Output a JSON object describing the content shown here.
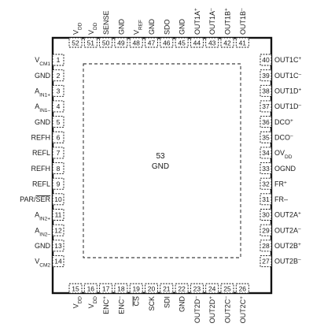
{
  "package": {
    "center_pin": {
      "number": "53",
      "name": "GND"
    }
  },
  "pins": {
    "left": [
      {
        "n": "1",
        "base": "V",
        "sub": "CM1",
        "sup": ""
      },
      {
        "n": "2",
        "base": "GND",
        "sub": "",
        "sup": ""
      },
      {
        "n": "3",
        "base": "A",
        "sub": "IN1+",
        "sup": ""
      },
      {
        "n": "4",
        "base": "A",
        "sub": "IN1–",
        "sup": ""
      },
      {
        "n": "5",
        "base": "GND",
        "sub": "",
        "sup": ""
      },
      {
        "n": "6",
        "base": "REFH",
        "sub": "",
        "sup": ""
      },
      {
        "n": "7",
        "base": "REFL",
        "sub": "",
        "sup": ""
      },
      {
        "n": "8",
        "base": "REFH",
        "sub": "",
        "sup": ""
      },
      {
        "n": "9",
        "base": "REFL",
        "sub": "",
        "sup": ""
      },
      {
        "n": "10",
        "base": "PAR/SER",
        "sub": "",
        "sup": "",
        "overline": "SER"
      },
      {
        "n": "11",
        "base": "A",
        "sub": "IN2+",
        "sup": ""
      },
      {
        "n": "12",
        "base": "A",
        "sub": "IN2–",
        "sup": ""
      },
      {
        "n": "13",
        "base": "GND",
        "sub": "",
        "sup": ""
      },
      {
        "n": "14",
        "base": "V",
        "sub": "CM2",
        "sup": ""
      }
    ],
    "right": [
      {
        "n": "40",
        "base": "OUT1C",
        "sub": "",
        "sup": "+"
      },
      {
        "n": "39",
        "base": "OUT1C",
        "sub": "",
        "sup": "–"
      },
      {
        "n": "38",
        "base": "OUT1D",
        "sub": "",
        "sup": "+"
      },
      {
        "n": "37",
        "base": "OUT1D",
        "sub": "",
        "sup": "–"
      },
      {
        "n": "36",
        "base": "DCO",
        "sub": "",
        "sup": "+"
      },
      {
        "n": "35",
        "base": "DCO",
        "sub": "",
        "sup": "–"
      },
      {
        "n": "34",
        "base": "OV",
        "sub": "DD",
        "sup": ""
      },
      {
        "n": "33",
        "base": "OGND",
        "sub": "",
        "sup": ""
      },
      {
        "n": "32",
        "base": "FR",
        "sub": "",
        "sup": "+"
      },
      {
        "n": "31",
        "base": "FR–",
        "sub": "",
        "sup": ""
      },
      {
        "n": "30",
        "base": "OUT2A",
        "sub": "",
        "sup": "+"
      },
      {
        "n": "29",
        "base": "OUT2A",
        "sub": "",
        "sup": "–"
      },
      {
        "n": "28",
        "base": "OUT2B",
        "sub": "",
        "sup": "+"
      },
      {
        "n": "27",
        "base": "OUT2B",
        "sub": "",
        "sup": "–"
      }
    ],
    "top": [
      {
        "n": "52",
        "base": "V",
        "sub": "DD",
        "sup": ""
      },
      {
        "n": "51",
        "base": "V",
        "sub": "DD",
        "sup": ""
      },
      {
        "n": "50",
        "base": "SENSE",
        "sub": "",
        "sup": ""
      },
      {
        "n": "49",
        "base": "GND",
        "sub": "",
        "sup": ""
      },
      {
        "n": "48",
        "base": "V",
        "sub": "REF",
        "sup": ""
      },
      {
        "n": "47",
        "base": "GND",
        "sub": "",
        "sup": ""
      },
      {
        "n": "46",
        "base": "SDO",
        "sub": "",
        "sup": ""
      },
      {
        "n": "45",
        "base": "GND",
        "sub": "",
        "sup": ""
      },
      {
        "n": "44",
        "base": "OUT1A",
        "sub": "",
        "sup": "+"
      },
      {
        "n": "43",
        "base": "OUT1A",
        "sub": "",
        "sup": "–"
      },
      {
        "n": "42",
        "base": "OUT1B",
        "sub": "",
        "sup": "+"
      },
      {
        "n": "41",
        "base": "OUT1B",
        "sub": "",
        "sup": "–"
      }
    ],
    "bottom": [
      {
        "n": "15",
        "base": "V",
        "sub": "DD",
        "sup": ""
      },
      {
        "n": "16",
        "base": "V",
        "sub": "DD",
        "sup": ""
      },
      {
        "n": "17",
        "base": "ENC",
        "sub": "",
        "sup": "+"
      },
      {
        "n": "18",
        "base": "ENC",
        "sub": "",
        "sup": "–"
      },
      {
        "n": "19",
        "base": "CS",
        "sub": "",
        "sup": "",
        "overline": "CS"
      },
      {
        "n": "20",
        "base": "SCK",
        "sub": "",
        "sup": ""
      },
      {
        "n": "21",
        "base": "SDI",
        "sub": "",
        "sup": ""
      },
      {
        "n": "22",
        "base": "GND",
        "sub": "",
        "sup": ""
      },
      {
        "n": "23",
        "base": "OUT2D",
        "sub": "",
        "sup": "–"
      },
      {
        "n": "24",
        "base": "OUT2D",
        "sub": "",
        "sup": "+"
      },
      {
        "n": "25",
        "base": "OUT2C",
        "sub": "",
        "sup": "–"
      },
      {
        "n": "26",
        "base": "OUT2C",
        "sub": "",
        "sup": "+"
      }
    ]
  }
}
